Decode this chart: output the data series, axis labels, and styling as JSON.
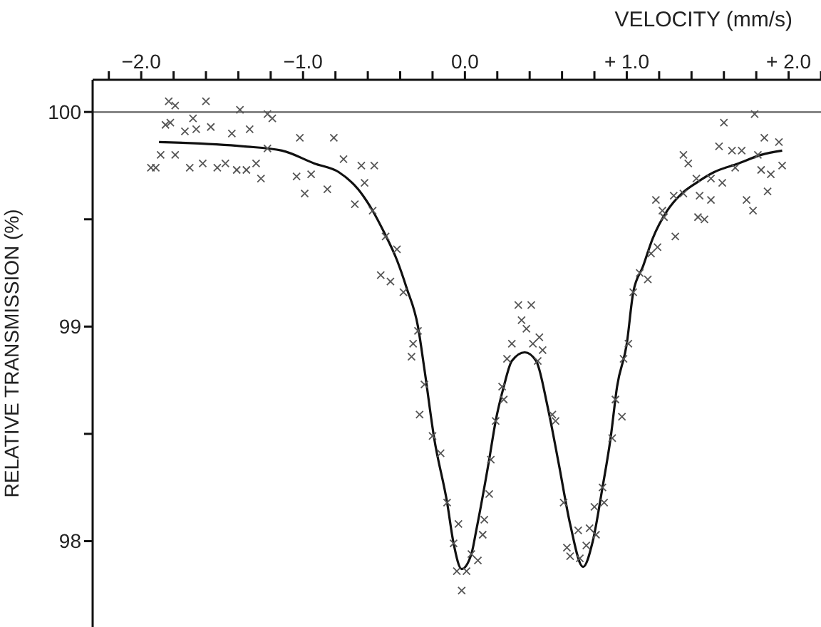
{
  "chart_data": {
    "type": "scatter",
    "xlabel": "VELOCITY (mm/s)",
    "ylabel": "RELATIVE TRANSMISSION (%)",
    "marker": "cross",
    "line_style": "solid",
    "xlim": [
      -2.3,
      2.2
    ],
    "ylim": [
      97.6,
      100.15
    ],
    "xticks": [
      {
        "value": -2.2,
        "label": null
      },
      {
        "value": -2.0,
        "label": "−2.0"
      },
      {
        "value": -1.8,
        "label": null
      },
      {
        "value": -1.6,
        "label": null
      },
      {
        "value": -1.4,
        "label": null
      },
      {
        "value": -1.2,
        "label": null
      },
      {
        "value": -1.0,
        "label": "−1.0"
      },
      {
        "value": -0.8,
        "label": null
      },
      {
        "value": -0.6,
        "label": null
      },
      {
        "value": -0.4,
        "label": null
      },
      {
        "value": -0.2,
        "label": null
      },
      {
        "value": 0,
        "label": "0.0"
      },
      {
        "value": 0.2,
        "label": null
      },
      {
        "value": 0.4,
        "label": null
      },
      {
        "value": 0.6,
        "label": null
      },
      {
        "value": 0.8,
        "label": null
      },
      {
        "value": 1.0,
        "label": "+ 1.0"
      },
      {
        "value": 1.2,
        "label": null
      },
      {
        "value": 1.4,
        "label": null
      },
      {
        "value": 1.6,
        "label": null
      },
      {
        "value": 1.8,
        "label": null
      },
      {
        "value": 2.0,
        "label": "+ 2.0"
      },
      {
        "value": 2.2,
        "label": null
      }
    ],
    "yticks": [
      98,
      {
        "value": 98.5,
        "label": null
      },
      99,
      {
        "value": 99.5,
        "label": null
      },
      100
    ],
    "ref_lines": [
      {
        "axis": "y",
        "value": 100,
        "color": "#555555"
      }
    ],
    "series": [
      {
        "color": "#555555",
        "x": [
          -1.83,
          -1.79,
          -1.6,
          -1.39,
          -1.22,
          -1.19,
          -1.68,
          -1.85,
          -1.82,
          -1.73,
          -1.66,
          -1.57,
          -1.44,
          -1.33,
          -1.02,
          -0.81,
          -1.88,
          -1.79,
          -1.94,
          -1.91,
          -1.7,
          -1.62,
          -1.53,
          -1.48,
          -1.41,
          -1.35,
          -1.26,
          -1.29,
          -1.22,
          -1.04,
          -0.99,
          -0.95,
          -0.85,
          -0.75,
          -0.64,
          -0.56,
          -0.62,
          -0.68,
          -0.57,
          -0.49,
          -0.42,
          -0.52,
          -0.46,
          -0.38,
          -0.29,
          -0.32,
          -0.33,
          -0.25,
          -0.28,
          -0.2,
          -0.15,
          -0.11,
          -0.04,
          -0.07,
          -0.05,
          0.01,
          -0.02,
          0.04,
          0.08,
          0.11,
          0.12,
          0.15,
          0.16,
          0.19,
          0.24,
          0.23,
          0.26,
          0.29,
          0.42,
          0.48,
          0.45,
          0.56,
          0.54,
          0.61,
          0.63,
          0.65,
          0.71,
          0.75,
          0.7,
          0.77,
          0.81,
          0.8,
          0.86,
          0.85,
          0.91,
          0.97,
          0.93,
          0.98,
          1.01,
          0.33,
          0.41,
          0.35,
          0.38,
          0.46,
          1.04,
          1.13,
          1.08,
          1.15,
          1.19,
          1.3,
          1.23,
          1.22,
          1.18,
          1.29,
          1.35,
          1.45,
          1.52,
          1.44,
          1.48,
          1.43,
          1.52,
          1.59,
          1.35,
          1.38,
          1.57,
          1.65,
          1.71,
          1.67,
          1.81,
          1.83,
          1.89,
          1.96,
          1.94,
          1.85,
          1.74,
          1.78,
          1.87,
          1.6,
          1.79
        ],
        "values": [
          100.05,
          100.03,
          100.05,
          100.01,
          99.99,
          99.97,
          99.97,
          99.94,
          99.95,
          99.91,
          99.92,
          99.93,
          99.9,
          99.92,
          99.88,
          99.88,
          99.8,
          99.8,
          99.74,
          99.74,
          99.74,
          99.76,
          99.74,
          99.76,
          99.73,
          99.73,
          99.69,
          99.76,
          99.83,
          99.7,
          99.62,
          99.71,
          99.64,
          99.78,
          99.75,
          99.75,
          99.67,
          99.57,
          99.54,
          99.42,
          99.36,
          99.24,
          99.21,
          99.16,
          98.98,
          98.92,
          98.86,
          98.73,
          98.59,
          98.49,
          98.41,
          98.18,
          98.08,
          97.99,
          97.86,
          97.86,
          97.77,
          97.94,
          97.91,
          98.03,
          98.1,
          98.22,
          98.38,
          98.56,
          98.66,
          98.72,
          98.85,
          98.92,
          98.92,
          98.89,
          98.84,
          98.56,
          98.59,
          98.18,
          97.97,
          97.93,
          97.92,
          97.98,
          98.05,
          98.06,
          98.03,
          98.16,
          98.18,
          98.25,
          98.48,
          98.58,
          98.66,
          98.85,
          98.92,
          99.1,
          99.1,
          99.03,
          98.99,
          98.95,
          99.16,
          99.22,
          99.25,
          99.34,
          99.37,
          99.42,
          99.51,
          99.54,
          99.59,
          99.61,
          99.62,
          99.61,
          99.59,
          99.51,
          99.5,
          99.69,
          99.69,
          99.67,
          99.8,
          99.76,
          99.84,
          99.82,
          99.82,
          99.74,
          99.8,
          99.73,
          99.71,
          99.75,
          99.86,
          99.88,
          99.59,
          99.54,
          99.63,
          99.95,
          99.99
        ]
      },
      {
        "type": "line",
        "marker": "none",
        "color": "#111111",
        "x": [
          -1.89,
          -1.37,
          -1.13,
          -0.93,
          -0.78,
          -0.66,
          -0.57,
          -0.5,
          -0.42,
          -0.36,
          -0.29,
          -0.25,
          -0.19,
          -0.11,
          -0.07,
          -0.02,
          0.04,
          0.07,
          0.15,
          0.19,
          0.24,
          0.29,
          0.37,
          0.44,
          0.51,
          0.58,
          0.65,
          0.73,
          0.79,
          0.85,
          0.9,
          0.94,
          1.0,
          1.04,
          1.1,
          1.16,
          1.25,
          1.34,
          1.43,
          1.54,
          1.69,
          1.83,
          1.96
        ],
        "values": [
          99.86,
          99.84,
          99.82,
          99.76,
          99.72,
          99.64,
          99.54,
          99.44,
          99.31,
          99.18,
          99.0,
          98.8,
          98.48,
          98.18,
          97.99,
          97.87,
          97.94,
          98.05,
          98.38,
          98.56,
          98.72,
          98.84,
          98.88,
          98.84,
          98.63,
          98.36,
          98.08,
          97.88,
          98.0,
          98.25,
          98.48,
          98.72,
          98.92,
          99.16,
          99.28,
          99.41,
          99.54,
          99.62,
          99.67,
          99.72,
          99.76,
          99.8,
          99.82
        ]
      }
    ]
  }
}
